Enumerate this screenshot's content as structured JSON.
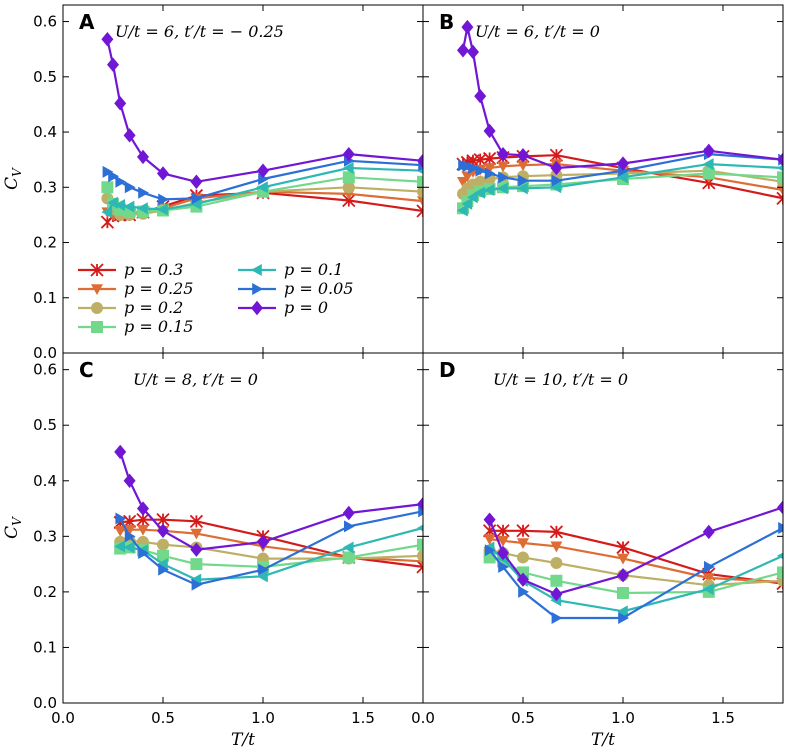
{
  "colors": {
    "p=0.3": "#d51a1a",
    "p=0.25": "#dd6d35",
    "p=0.2": "#bdb066",
    "p=0.15": "#72d98c",
    "p=0.1": "#2db8b4",
    "p=0.05": "#2c6fd6",
    "p=0": "#7216d6"
  },
  "chart_data": [
    {
      "panel": "A",
      "type": "line",
      "title": "U/t = 6, t′/t = − 0.25",
      "xlabel": "",
      "ylabel": "C_V",
      "xlim": [
        0.0,
        1.8
      ],
      "ylim": [
        0.0,
        0.63
      ],
      "xticks": [],
      "yticks": [
        "0.0",
        "0.1",
        "0.2",
        "0.3",
        "0.4",
        "0.5",
        "0.6"
      ],
      "series": [
        {
          "name": "p = 0.3",
          "marker": "x",
          "x": [
            0.222,
            0.25,
            0.286,
            0.333,
            0.4,
            0.5,
            0.667,
            1.0,
            1.429,
            1.8
          ],
          "y": [
            0.237,
            0.248,
            0.25,
            0.25,
            0.255,
            0.265,
            0.285,
            0.29,
            0.276,
            0.257
          ]
        },
        {
          "name": "p = 0.25",
          "marker": "v",
          "x": [
            0.222,
            0.25,
            0.286,
            0.333,
            0.4,
            0.5,
            0.667,
            1.0,
            1.429,
            1.8
          ],
          "y": [
            0.255,
            0.25,
            0.252,
            0.252,
            0.255,
            0.262,
            0.28,
            0.292,
            0.288,
            0.275
          ]
        },
        {
          "name": "p = 0.2",
          "marker": "o",
          "x": [
            0.222,
            0.25,
            0.286,
            0.333,
            0.4,
            0.5,
            0.667,
            1.0,
            1.429,
            1.8
          ],
          "y": [
            0.28,
            0.26,
            0.25,
            0.25,
            0.252,
            0.258,
            0.272,
            0.292,
            0.3,
            0.292
          ]
        },
        {
          "name": "p = 0.15",
          "marker": "s",
          "x": [
            0.222,
            0.25,
            0.286,
            0.333,
            0.4,
            0.5,
            0.667,
            1.0,
            1.429,
            1.8
          ],
          "y": [
            0.3,
            0.27,
            0.26,
            0.256,
            0.256,
            0.258,
            0.265,
            0.292,
            0.318,
            0.31
          ]
        },
        {
          "name": "p = 0.1",
          "marker": "<",
          "x": [
            0.222,
            0.25,
            0.286,
            0.333,
            0.4,
            0.5,
            0.667,
            1.0,
            1.429,
            1.8
          ],
          "y": [
            0.255,
            0.272,
            0.268,
            0.265,
            0.262,
            0.26,
            0.27,
            0.3,
            0.335,
            0.33
          ]
        },
        {
          "name": "p = 0.05",
          "marker": ">",
          "x": [
            0.222,
            0.25,
            0.286,
            0.333,
            0.4,
            0.5,
            0.667,
            1.0,
            1.429,
            1.8
          ],
          "y": [
            0.328,
            0.32,
            0.31,
            0.3,
            0.29,
            0.278,
            0.28,
            0.315,
            0.348,
            0.34
          ]
        },
        {
          "name": "p = 0",
          "marker": "D",
          "x": [
            0.222,
            0.25,
            0.286,
            0.333,
            0.4,
            0.5,
            0.667,
            1.0,
            1.429,
            1.8
          ],
          "y": [
            0.568,
            0.522,
            0.452,
            0.394,
            0.355,
            0.325,
            0.31,
            0.33,
            0.36,
            0.348
          ]
        }
      ]
    },
    {
      "panel": "B",
      "type": "line",
      "title": "U/t = 6, t′/t = 0",
      "xlabel": "",
      "ylabel": "",
      "xlim": [
        0.0,
        1.8
      ],
      "ylim": [
        0.0,
        0.63
      ],
      "xticks": [],
      "yticks": [],
      "series": [
        {
          "name": "p = 0.3",
          "marker": "x",
          "x": [
            0.2,
            0.222,
            0.25,
            0.286,
            0.333,
            0.4,
            0.5,
            0.667,
            1.0,
            1.429,
            1.8
          ],
          "y": [
            0.342,
            0.345,
            0.348,
            0.35,
            0.352,
            0.354,
            0.356,
            0.358,
            0.335,
            0.308,
            0.28
          ]
        },
        {
          "name": "p = 0.25",
          "marker": "v",
          "x": [
            0.2,
            0.222,
            0.25,
            0.286,
            0.333,
            0.4,
            0.5,
            0.667,
            1.0,
            1.429,
            1.8
          ],
          "y": [
            0.31,
            0.32,
            0.328,
            0.332,
            0.335,
            0.338,
            0.34,
            0.342,
            0.33,
            0.318,
            0.295
          ]
        },
        {
          "name": "p = 0.2",
          "marker": "o",
          "x": [
            0.2,
            0.222,
            0.25,
            0.286,
            0.333,
            0.4,
            0.5,
            0.667,
            1.0,
            1.429,
            1.8
          ],
          "y": [
            0.288,
            0.298,
            0.305,
            0.31,
            0.315,
            0.318,
            0.32,
            0.322,
            0.325,
            0.33,
            0.31
          ]
        },
        {
          "name": "p = 0.15",
          "marker": "s",
          "x": [
            0.2,
            0.222,
            0.25,
            0.286,
            0.333,
            0.4,
            0.5,
            0.667,
            1.0,
            1.429,
            1.8
          ],
          "y": [
            0.262,
            0.275,
            0.286,
            0.293,
            0.297,
            0.3,
            0.302,
            0.305,
            0.315,
            0.325,
            0.318
          ]
        },
        {
          "name": "p = 0.1",
          "marker": "<",
          "x": [
            0.2,
            0.222,
            0.25,
            0.286,
            0.333,
            0.4,
            0.5,
            0.667,
            1.0,
            1.429,
            1.8
          ],
          "y": [
            0.258,
            0.27,
            0.282,
            0.29,
            0.295,
            0.298,
            0.298,
            0.3,
            0.318,
            0.342,
            0.335
          ]
        },
        {
          "name": "p = 0.05",
          "marker": ">",
          "x": [
            0.2,
            0.222,
            0.25,
            0.286,
            0.333,
            0.4,
            0.5,
            0.667,
            1.0,
            1.429,
            1.8
          ],
          "y": [
            0.34,
            0.338,
            0.335,
            0.33,
            0.325,
            0.318,
            0.312,
            0.312,
            0.33,
            0.36,
            0.35
          ]
        },
        {
          "name": "p = 0",
          "marker": "D",
          "x": [
            0.2,
            0.222,
            0.25,
            0.286,
            0.333,
            0.4,
            0.5,
            0.667,
            1.0,
            1.429,
            1.8
          ],
          "y": [
            0.548,
            0.59,
            0.545,
            0.465,
            0.402,
            0.36,
            0.358,
            0.335,
            0.343,
            0.366,
            0.35
          ]
        }
      ]
    },
    {
      "panel": "C",
      "type": "line",
      "title": "U/t = 8, t′/t = 0",
      "xlabel": "T/t",
      "ylabel": "C_V",
      "xlim": [
        0.0,
        1.8
      ],
      "ylim": [
        0.0,
        0.63
      ],
      "xticks": [
        "0.0",
        "0.5",
        "1.0",
        "1.5",
        "0.0"
      ],
      "yticks": [
        "0.0",
        "0.1",
        "0.2",
        "0.3",
        "0.4",
        "0.5",
        "0.6"
      ],
      "series": [
        {
          "name": "p = 0.3",
          "marker": "x",
          "x": [
            0.286,
            0.333,
            0.4,
            0.5,
            0.667,
            1.0,
            1.429,
            1.8
          ],
          "y": [
            0.325,
            0.327,
            0.33,
            0.33,
            0.327,
            0.3,
            0.262,
            0.245
          ]
        },
        {
          "name": "p = 0.25",
          "marker": "v",
          "x": [
            0.286,
            0.333,
            0.4,
            0.5,
            0.667,
            1.0,
            1.429,
            1.8
          ],
          "y": [
            0.31,
            0.312,
            0.312,
            0.31,
            0.305,
            0.282,
            0.262,
            0.255
          ]
        },
        {
          "name": "p = 0.2",
          "marker": "o",
          "x": [
            0.286,
            0.333,
            0.4,
            0.5,
            0.667,
            1.0,
            1.429,
            1.8
          ],
          "y": [
            0.29,
            0.292,
            0.29,
            0.285,
            0.28,
            0.26,
            0.26,
            0.265
          ]
        },
        {
          "name": "p = 0.15",
          "marker": "s",
          "x": [
            0.286,
            0.333,
            0.4,
            0.5,
            0.667,
            1.0,
            1.429,
            1.8
          ],
          "y": [
            0.278,
            0.28,
            0.275,
            0.265,
            0.25,
            0.245,
            0.262,
            0.285
          ]
        },
        {
          "name": "p = 0.1",
          "marker": "<",
          "x": [
            0.286,
            0.333,
            0.4,
            0.5,
            0.667,
            1.0,
            1.429,
            1.8
          ],
          "y": [
            0.282,
            0.28,
            0.275,
            0.25,
            0.222,
            0.228,
            0.28,
            0.315
          ]
        },
        {
          "name": "p = 0.05",
          "marker": ">",
          "x": [
            0.286,
            0.333,
            0.4,
            0.5,
            0.667,
            1.0,
            1.429,
            1.8
          ],
          "y": [
            0.332,
            0.3,
            0.27,
            0.24,
            0.213,
            0.24,
            0.318,
            0.345
          ]
        },
        {
          "name": "p = 0",
          "marker": "D",
          "x": [
            0.286,
            0.333,
            0.4,
            0.5,
            0.667,
            1.0,
            1.429,
            1.8
          ],
          "y": [
            0.452,
            0.4,
            0.35,
            0.31,
            0.276,
            0.29,
            0.342,
            0.358
          ]
        }
      ]
    },
    {
      "panel": "D",
      "type": "line",
      "title": "U/t = 10, t′/t = 0",
      "xlabel": "T/t",
      "ylabel": "",
      "xlim": [
        0.0,
        1.8
      ],
      "ylim": [
        0.0,
        0.63
      ],
      "xticks": [
        "0.5",
        "1.0",
        "1.5"
      ],
      "yticks": [],
      "series": [
        {
          "name": "p = 0.3",
          "marker": "x",
          "x": [
            0.333,
            0.4,
            0.5,
            0.667,
            1.0,
            1.429,
            1.8
          ],
          "y": [
            0.31,
            0.31,
            0.31,
            0.308,
            0.28,
            0.232,
            0.215
          ]
        },
        {
          "name": "p = 0.25",
          "marker": "v",
          "x": [
            0.333,
            0.4,
            0.5,
            0.667,
            1.0,
            1.429,
            1.8
          ],
          "y": [
            0.295,
            0.292,
            0.288,
            0.282,
            0.26,
            0.225,
            0.218
          ]
        },
        {
          "name": "p = 0.2",
          "marker": "o",
          "x": [
            0.333,
            0.4,
            0.5,
            0.667,
            1.0,
            1.429,
            1.8
          ],
          "y": [
            0.275,
            0.27,
            0.262,
            0.252,
            0.23,
            0.212,
            0.22
          ]
        },
        {
          "name": "p = 0.15",
          "marker": "s",
          "x": [
            0.333,
            0.4,
            0.5,
            0.667,
            1.0,
            1.429,
            1.8
          ],
          "y": [
            0.262,
            0.255,
            0.235,
            0.22,
            0.198,
            0.2,
            0.235
          ]
        },
        {
          "name": "p = 0.1",
          "marker": "<",
          "x": [
            0.333,
            0.4,
            0.5,
            0.667,
            1.0,
            1.429,
            1.8
          ],
          "y": [
            0.28,
            0.26,
            0.22,
            0.185,
            0.165,
            0.205,
            0.265
          ]
        },
        {
          "name": "p = 0.05",
          "marker": ">",
          "x": [
            0.333,
            0.4,
            0.5,
            0.667,
            1.0,
            1.429,
            1.8
          ],
          "y": [
            0.275,
            0.245,
            0.2,
            0.153,
            0.153,
            0.245,
            0.315
          ]
        },
        {
          "name": "p = 0",
          "marker": "D",
          "x": [
            0.333,
            0.4,
            0.5,
            0.667,
            1.0,
            1.429,
            1.8
          ],
          "y": [
            0.33,
            0.27,
            0.222,
            0.196,
            0.23,
            0.308,
            0.352
          ]
        }
      ]
    }
  ],
  "legend": {
    "placement": "lower-left of panel A",
    "columns": [
      [
        "p = 0.3",
        "p = 0.25",
        "p = 0.2",
        "p = 0.15"
      ],
      [
        "p = 0.1",
        "p = 0.05",
        "p = 0"
      ]
    ]
  }
}
